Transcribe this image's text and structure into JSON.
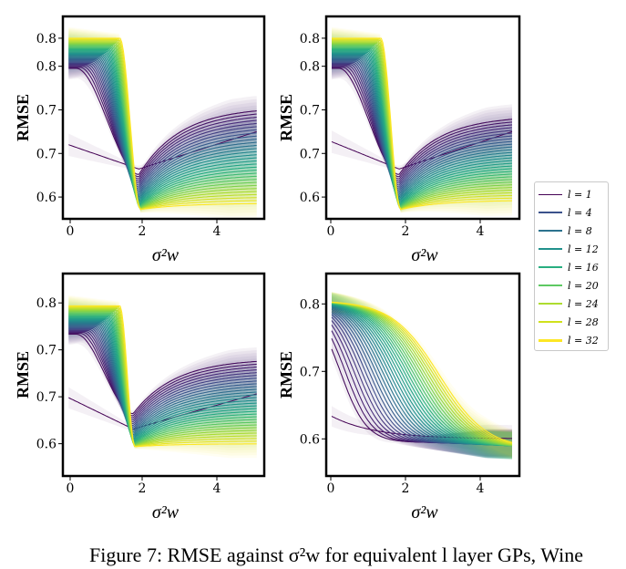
{
  "figure": {
    "caption": "Figure 7: RMSE against σ²w for equivalent l layer GPs, Wine"
  },
  "legend": {
    "entries": [
      {
        "label": "l = 1",
        "color": "#440154"
      },
      {
        "label": "l = 4",
        "color": "#3b528b"
      },
      {
        "label": "l = 8",
        "color": "#2c728e"
      },
      {
        "label": "l = 12",
        "color": "#21918c"
      },
      {
        "label": "l = 16",
        "color": "#28ae80"
      },
      {
        "label": "l = 20",
        "color": "#5ec962"
      },
      {
        "label": "l = 24",
        "color": "#addc30"
      },
      {
        "label": "l = 28",
        "color": "#d0e11c"
      },
      {
        "label": "l = 32",
        "color": "#fde725"
      }
    ]
  },
  "chart_data": [
    {
      "type": "line",
      "panel": "top-left",
      "xlabel": "σ²w",
      "ylabel": "RMSE",
      "xlim": [
        -0.1,
        5.2
      ],
      "ylim": [
        0.545,
        0.87
      ],
      "xticks": [
        0,
        2,
        4
      ],
      "yticks": [
        0.6,
        0.7,
        0.8
      ],
      "ytick_labels": [
        "0.6",
        "0.7",
        "0.7",
        "0.8",
        "0.8"
      ],
      "ytick_values": [
        0.58,
        0.65,
        0.72,
        0.79,
        0.835
      ],
      "layers": [
        1,
        4,
        8,
        12,
        16,
        20,
        24,
        28,
        32
      ],
      "start_rmse_l1": 0.665,
      "min_rmse": 0.56,
      "min_at": 1.9,
      "plateau": 0.835,
      "end_rmse_low_l": 0.73,
      "end_rmse_high_l": 0.57
    },
    {
      "type": "line",
      "panel": "top-right",
      "xlabel": "σ²w",
      "ylabel": "RMSE",
      "xlim": [
        -0.1,
        5.2
      ],
      "ylim": [
        0.545,
        0.87
      ],
      "xticks": [
        0,
        2,
        4
      ],
      "ytick_labels": [
        "0.6",
        "0.7",
        "0.7",
        "0.8",
        "0.8"
      ],
      "ytick_values": [
        0.58,
        0.65,
        0.72,
        0.79,
        0.835
      ],
      "layers": [
        1,
        4,
        8,
        12,
        16,
        20,
        24,
        28,
        32
      ],
      "start_rmse_l1": 0.67,
      "min_rmse": 0.56,
      "min_at": 1.9,
      "plateau": 0.835,
      "end_rmse_low_l": 0.715,
      "end_rmse_high_l": 0.575
    },
    {
      "type": "line",
      "panel": "bottom-left",
      "xlabel": "σ²w",
      "ylabel": "RMSE",
      "xlim": [
        -0.1,
        5.2
      ],
      "ylim": [
        0.545,
        0.89
      ],
      "xticks": [
        0,
        2,
        4
      ],
      "ytick_labels": [
        "0.6",
        "0.7",
        "0.7",
        "0.8"
      ],
      "ytick_values": [
        0.6,
        0.68,
        0.76,
        0.84
      ],
      "layers": [
        1,
        4,
        8,
        12,
        16,
        20,
        24,
        28,
        32
      ],
      "start_rmse_l1": 0.68,
      "min_rmse": 0.595,
      "min_at": 1.75,
      "plateau": 0.835,
      "end_rmse_low_l": 0.75,
      "end_rmse_high_l": 0.6
    },
    {
      "type": "line",
      "panel": "bottom-right",
      "xlabel": "σ²w",
      "ylabel": "RMSE",
      "xlim": [
        -0.1,
        5.2
      ],
      "ylim": [
        0.545,
        0.845
      ],
      "xticks": [
        0,
        2,
        4
      ],
      "ytick_labels": [
        "0.6",
        "0.7",
        "0.8"
      ],
      "ytick_values": [
        0.6,
        0.7,
        0.8
      ],
      "layers": [
        1,
        4,
        8,
        12,
        16,
        20,
        24,
        28,
        32
      ],
      "start_rmse_l1": 0.635,
      "plateau": 0.805,
      "end_rmse_low_l": 0.595,
      "end_rmse_high_l": 0.585
    }
  ]
}
